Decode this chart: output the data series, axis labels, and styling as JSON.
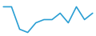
{
  "x": [
    0,
    1,
    2,
    3,
    4,
    5,
    6,
    7,
    8,
    9,
    10,
    11
  ],
  "y": [
    9,
    9,
    2,
    1,
    4,
    5,
    5,
    7,
    4,
    9,
    5,
    7
  ],
  "line_color": "#2b9fd4",
  "linewidth": 1.2,
  "background_color": "#ffffff",
  "ylim": [
    0,
    11
  ],
  "xlim": [
    -0.3,
    11.3
  ]
}
